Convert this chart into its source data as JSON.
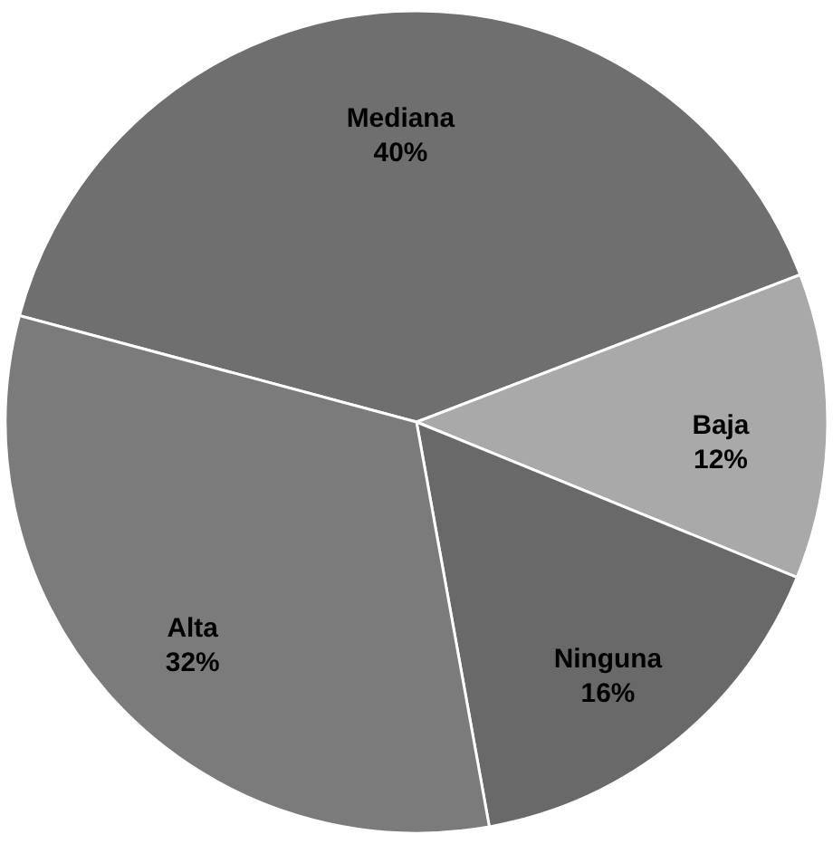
{
  "chart_data": {
    "type": "pie",
    "categories": [
      "Mediana",
      "Baja",
      "Ninguna",
      "Alta"
    ],
    "values": [
      40,
      12,
      16,
      32
    ],
    "value_labels": [
      "40%",
      "12%",
      "16%",
      "32%"
    ],
    "colors": [
      "#6f6f6f",
      "#a9a9a9",
      "#696969",
      "#7b7b7b"
    ],
    "legend": false
  }
}
